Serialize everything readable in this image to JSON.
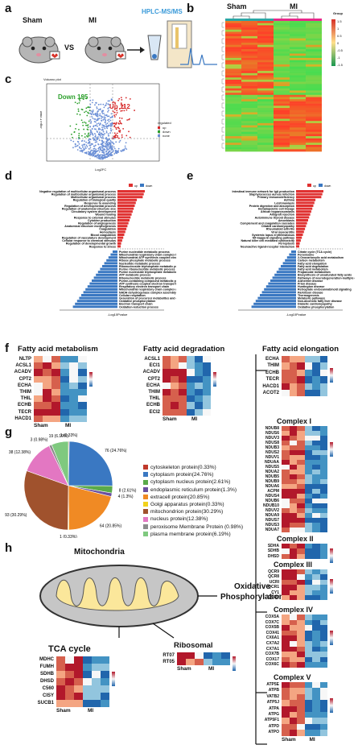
{
  "panels": {
    "a": {
      "label": "a",
      "sham": "Sham",
      "mi": "MI",
      "vs": "VS",
      "method": "HPLC-MS/MS"
    },
    "b": {
      "label": "b",
      "group_sham": "Sham",
      "group_mi": "MI",
      "legend_title": "Group",
      "scale": [
        "1.5",
        "1",
        "0.5",
        "0",
        "-0.5",
        "-1",
        "-1.5"
      ]
    },
    "c": {
      "label": "c",
      "title": "Volcano plot",
      "down": "Down 195",
      "up": "Up 112",
      "xlabel": "Log2FC",
      "ylabel": "-log10 P value",
      "legend_title": "regulated",
      "legend_items": [
        "up",
        "down",
        "none"
      ]
    },
    "d": {
      "label": "d",
      "xlabel": "-Log10Pvalue",
      "legend_items": [
        "up",
        "down"
      ],
      "up_terms": [
        "Negative regulation of multicellular organismal process",
        "Regulation of multicellular organismal process",
        "Multicellular organismal process",
        "Regulation of biological quality",
        "Response to wounding",
        "Regulation of developmental process",
        "Regulation of anatomical structure size",
        "Circulatory system development",
        "Wound healing",
        "Response to external stimulus",
        "Cytokine production",
        "Regulation of angiogenesis",
        "Anatomical structure morphogenesis",
        "Coagulation",
        "Hemostasis",
        "Blood coagulation",
        "Regulation of vasculature development",
        "Cellular response to chemical stimulus",
        "Regulation of developmental growth",
        "Response to stress"
      ],
      "down_terms": [
        "Purine nucleotide metabolic process",
        "Mitochondrial respiratory chain complex I assembly",
        "Mitochondrial ATP synthesis coupled electron transport",
        "Ribose phosphate metabolic process",
        "Nucleotide metabolic process",
        "Ribonucleoside triphosphate metabolic process",
        "Purine ribonucleotide metabolic process",
        "Purine nucleoside triphosphate metabolic process",
        "ATP metabolic process",
        "Ribonucleotide metabolic process",
        "Purine-containing compound metabolic process",
        "ATP synthesis coupled electron transport",
        "Respiratory electron transport chain",
        "Mitochondrial respiratory chain complex assembly",
        "NADH dehydrogenase complex assembly",
        "Cellular respiration",
        "Generation of precursor metabolites and energy",
        "Oxidative phosphorylation",
        "Electron transport chain",
        "Oxidation-reduction process"
      ]
    },
    "e": {
      "label": "e",
      "xlabel": "-Log10Pvalue",
      "legend_items": [
        "up",
        "down"
      ],
      "up_terms": [
        "Intestinal immune network for IgA production",
        "Staphylococcus aureus infection",
        "Primary immunodeficiency",
        "Asthma",
        "Leishmaniasis",
        "Protein digestion and absorption",
        "Hematopoietic cell lineage",
        "African trypanosomiasis",
        "Allograft rejection",
        "Autoimmune thyroid disease",
        "Amoebiasis",
        "Complement and coagulation cascades",
        "Dilated cardiomyopathy",
        "Rheumatoid arthritis",
        "Viral myocarditis",
        "Systemic lupus erythematosus",
        "NF-kappa B signaling pathway",
        "Natural killer cell mediated cytotoxicity",
        "Ferroptosis",
        "Neuroactive ligand-receptor interaction"
      ],
      "down_terms": [
        "Citrate cycle (TCA cycle)",
        "Peroxisome",
        "2-Oxocarboxylic acid metabolism",
        "Carbon metabolism",
        "Fatty acid elongation",
        "Fatty acid degradation",
        "Fatty acid metabolism",
        "Propanoate metabolism",
        "Biosynthesis of unsaturated fatty acids",
        "Pathways of neurodegeneration-multiple diseases",
        "Alzheimer disease",
        "Prion disease",
        "Huntington disease",
        "Retrograde endocannabinoid signaling",
        "Parkinson disease",
        "Thermogenesis",
        "Metabolic pathways",
        "Non-alcoholic fatty liver disease",
        "Diabetic cardiomyopathy",
        "Oxidative phosphorylation"
      ]
    },
    "f": {
      "label": "f",
      "fam": {
        "title": "Fatty acid metabolism",
        "genes": [
          "NLTP",
          "ACSL1",
          "ACADV",
          "CPT2",
          "ECHA",
          "THIM",
          "THIL",
          "ECHB",
          "TECR",
          "HACD1"
        ]
      },
      "fad": {
        "title": "Fatty acid degradation",
        "genes": [
          "ACSL1",
          "ECI1",
          "ACADV",
          "CPT2",
          "ECHA",
          "THIM",
          "THIL",
          "ECHB",
          "ECI2"
        ]
      },
      "fae": {
        "title": "Fatty acid elongation",
        "genes": [
          "ECHA",
          "THIM",
          "ECHB",
          "TECR",
          "HACD1",
          "ACOT2"
        ]
      },
      "sham": "Sham",
      "mi": "MI"
    },
    "g": {
      "label": "g",
      "slices": [
        {
          "name": "cytoskeleton protein",
          "value": 1,
          "pct": "0.33%",
          "color": "#c0392b"
        },
        {
          "name": "cytoplasm protein",
          "value": 76,
          "pct": "24.76%",
          "color": "#3a78c2"
        },
        {
          "name": "cytoplasm nucleus protein",
          "value": 8,
          "pct": "2.61%",
          "color": "#5aaa4a"
        },
        {
          "name": "endoplasmic reticulum protein",
          "value": 4,
          "pct": "1.3%",
          "color": "#6a4fa0"
        },
        {
          "name": "extracell protein",
          "value": 64,
          "pct": "20.85%",
          "color": "#f08a24"
        },
        {
          "name": "Golgi apparatus protein",
          "value": 1,
          "pct": "0.33%",
          "color": "#f2d21b"
        },
        {
          "name": "mitochondrion protein",
          "value": 93,
          "pct": "30.29%",
          "color": "#a0522d"
        },
        {
          "name": "nucleus protein",
          "value": 38,
          "pct": "12.38%",
          "color": "#e377c2"
        },
        {
          "name": "peroxisome Membrane Protein",
          "value": 3,
          "pct": "0.98%",
          "color": "#8c8c8c"
        },
        {
          "name": "plasma membrane protein",
          "value": 19,
          "pct": "6.19%",
          "color": "#7fc97f"
        }
      ],
      "slice_labels": [
        "1 (0.33%)",
        "76 (24.76%)",
        "8 (2.61%)",
        "4 (1.3%)",
        "64 (20.85%)",
        "1 (0.33%)",
        "93 (30.29%)",
        "38 (12.38%)",
        "3 (0.98%)",
        "19 (6.19%)"
      ],
      "legend": [
        "cytoskeleton protein(0.33%)",
        "cytoplasm protein(24.76%)",
        "cytoplasm nucleus protein(2.61%)",
        "endoplasmic reticulum protein(1.3%)",
        "extracell protein(20.85%)",
        "Golgi apparatus protein(0.33%)",
        "mitochondrion protein(30.29%)",
        "nucleus protein(12.38%)",
        "peroxisome Membrane Protein  (0.98%)",
        "plasma membrane protein(6.19%)"
      ]
    },
    "h": {
      "label": "h",
      "mito": "Mitochondria",
      "oxphos_l1": "Oxidative",
      "oxphos_l2": "Phosphorylation",
      "tca": {
        "title": "TCA cycle",
        "genes": [
          "MDHC",
          "FUMH",
          "SDHB",
          "DHSD",
          "C560",
          "CISY",
          "SUCB1"
        ]
      },
      "ribo": {
        "title": "Ribosomal",
        "genes": [
          "RT07",
          "RT05"
        ]
      },
      "c1": {
        "title": "Complex I",
        "genes": [
          "NDUB8",
          "NDUS6",
          "NDUV3",
          "NDUS8",
          "NDUB3",
          "NDUS2",
          "NDUV1",
          "NDUAA",
          "NDUS5",
          "NDUA2",
          "NDUB5",
          "NDUB9",
          "NDUA6",
          "ACPM",
          "NDUS4",
          "NDUB6",
          "NDUB10",
          "NDUV2",
          "NDUA9",
          "NDUS7",
          "NDUS3",
          "NDUA7"
        ]
      },
      "c2": {
        "title": "Complex II",
        "genes": [
          "SDHA",
          "SDHB",
          "DHSD"
        ]
      },
      "c3": {
        "title": "Complex III",
        "genes": [
          "QCR9",
          "QCR8",
          "UCRI",
          "QCR1",
          "CY1",
          "QCR2"
        ]
      },
      "c4": {
        "title": "Complex IV",
        "genes": [
          "COX5A",
          "COX7C",
          "COX5B",
          "COX41",
          "CX6A1",
          "CX7A2",
          "CX7A1",
          "COX7B",
          "COX17",
          "COX6C"
        ]
      },
      "c5": {
        "title": "Complex V",
        "genes": [
          "ATP5E",
          "ATPB",
          "VATB2",
          "ATP5J",
          "ATPA",
          "ATPG",
          "ATP5F1",
          "ATPD",
          "ATPO"
        ]
      },
      "sham": "Sham",
      "mi": "MI"
    },
    "colors": {
      "red": "#d73027",
      "blue": "#4575b4",
      "light_red": "#f4a582",
      "light_blue": "#92c5de",
      "white": "#f7f7f7"
    }
  }
}
